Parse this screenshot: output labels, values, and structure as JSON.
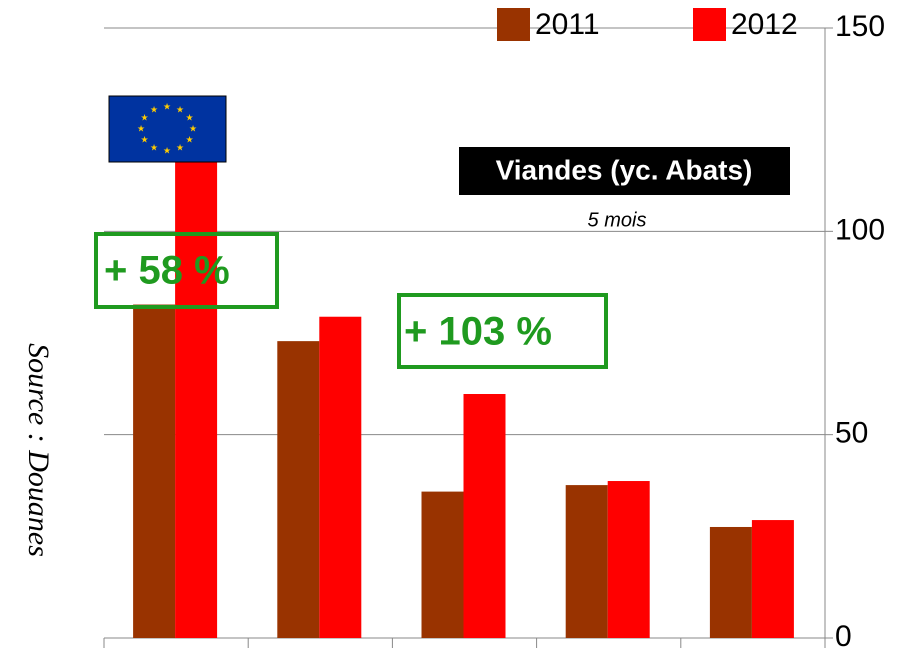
{
  "chart_data": {
    "type": "bar",
    "categories": [
      null,
      null,
      null,
      null,
      null
    ],
    "series": [
      {
        "name": "2011",
        "color": "#993300",
        "values": [
          82,
          73,
          36,
          37.6,
          27.3
        ]
      },
      {
        "name": "2012",
        "color": "#ff0000",
        "values": [
          130,
          79,
          60,
          38.6,
          29
        ]
      }
    ],
    "ylim": [
      0,
      150
    ],
    "yticks": [
      0,
      50,
      100,
      150
    ],
    "grid": true,
    "axis_side": "right",
    "legend": "top",
    "annotations": {
      "box_title": "Viandes (yc. Abats)",
      "period": "5 mois",
      "growth_1": "+ 58 %",
      "growth_2": "+ 103 %",
      "source": "Source : Douanes"
    }
  }
}
